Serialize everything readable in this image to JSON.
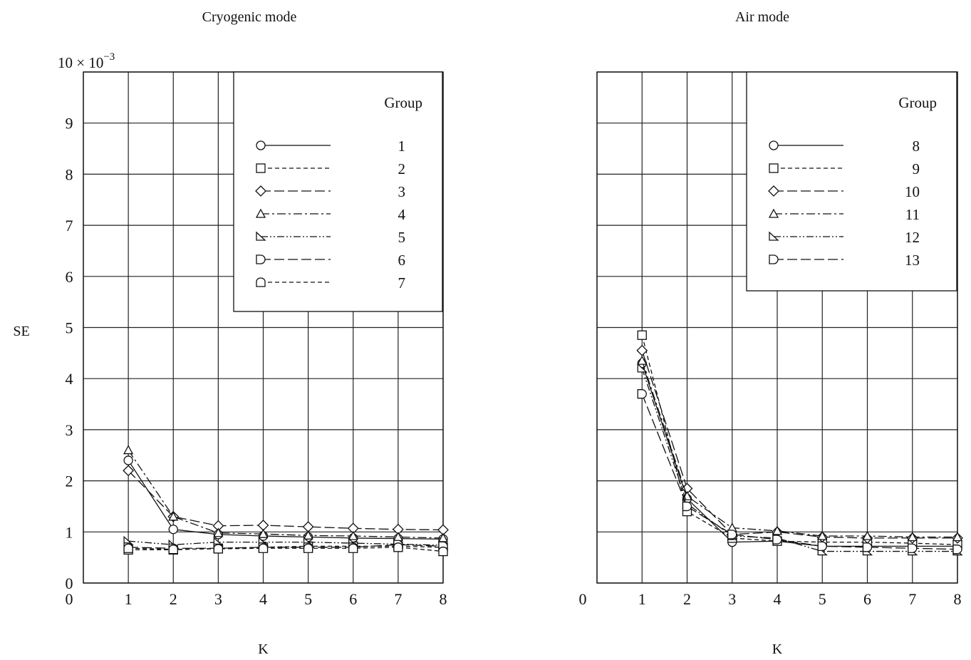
{
  "figure": {
    "shared_ylabel": "SE",
    "y_exponent_base": "10 × 10",
    "y_exponent_power": "−3"
  },
  "chart_data": [
    {
      "type": "line",
      "title": "Cryogenic mode",
      "xlabel": "K",
      "ylabel": "SE",
      "x": [
        1,
        2,
        3,
        4,
        5,
        6,
        7,
        8
      ],
      "xlim": [
        0,
        8
      ],
      "ylim": [
        0,
        10
      ],
      "y_scale_note": "× 10^-3",
      "x_ticks": [
        "0",
        "1",
        "2",
        "3",
        "4",
        "5",
        "6",
        "7",
        "8"
      ],
      "y_ticks": [
        "0",
        "1",
        "2",
        "3",
        "4",
        "5",
        "6",
        "7",
        "8",
        "9"
      ],
      "grid": true,
      "legend_title": "Group",
      "legend_position": "top-right",
      "series": [
        {
          "name": "1",
          "marker": "circle",
          "dash": "solid",
          "values": [
            2.4,
            1.05,
            0.95,
            0.92,
            0.9,
            0.88,
            0.87,
            0.86
          ]
        },
        {
          "name": "2",
          "marker": "square",
          "dash": "dashed",
          "values": [
            0.65,
            0.65,
            0.68,
            0.7,
            0.72,
            0.72,
            0.72,
            0.7
          ]
        },
        {
          "name": "3",
          "marker": "diamond",
          "dash": "longdash",
          "values": [
            2.2,
            1.3,
            1.12,
            1.13,
            1.1,
            1.07,
            1.05,
            1.04
          ]
        },
        {
          "name": "4",
          "marker": "triangle",
          "dash": "dashdot",
          "values": [
            2.6,
            1.3,
            0.98,
            0.96,
            0.93,
            0.92,
            0.9,
            0.88
          ]
        },
        {
          "name": "5",
          "marker": "wedge",
          "dash": "dashdotdot",
          "values": [
            0.82,
            0.75,
            0.8,
            0.8,
            0.8,
            0.78,
            0.76,
            0.74
          ]
        },
        {
          "name": "6",
          "marker": "halfcircle",
          "dash": "longdash",
          "values": [
            0.7,
            0.68,
            0.68,
            0.7,
            0.7,
            0.7,
            0.75,
            0.72
          ]
        },
        {
          "name": "7",
          "marker": "roundrect",
          "dash": "dashed",
          "values": [
            0.68,
            0.66,
            0.67,
            0.68,
            0.68,
            0.68,
            0.7,
            0.62
          ]
        }
      ]
    },
    {
      "type": "line",
      "title": "Air mode",
      "xlabel": "K",
      "ylabel": "SE",
      "x": [
        1,
        2,
        3,
        4,
        5,
        6,
        7,
        8
      ],
      "xlim": [
        0,
        8
      ],
      "ylim": [
        0,
        10
      ],
      "y_scale_note": "× 10^-3",
      "x_ticks": [
        "0",
        "1",
        "2",
        "3",
        "4",
        "5",
        "6",
        "7",
        "8"
      ],
      "y_ticks": [],
      "grid": true,
      "legend_title": "Group",
      "legend_position": "top-right",
      "series": [
        {
          "name": "8",
          "marker": "circle",
          "dash": "solid",
          "values": [
            4.3,
            1.65,
            0.8,
            0.82,
            0.72,
            0.72,
            0.72,
            0.72
          ]
        },
        {
          "name": "9",
          "marker": "square",
          "dash": "dashed",
          "values": [
            4.85,
            1.4,
            0.88,
            0.82,
            0.8,
            0.8,
            0.78,
            0.75
          ]
        },
        {
          "name": "10",
          "marker": "diamond",
          "dash": "longdash",
          "values": [
            4.55,
            1.85,
            0.95,
            1.0,
            0.9,
            0.88,
            0.88,
            0.88
          ]
        },
        {
          "name": "11",
          "marker": "triangle",
          "dash": "dashdot",
          "values": [
            4.35,
            1.7,
            1.08,
            1.02,
            0.92,
            0.92,
            0.9,
            0.9
          ]
        },
        {
          "name": "12",
          "marker": "wedge",
          "dash": "dashdotdot",
          "values": [
            4.2,
            1.55,
            0.92,
            0.88,
            0.62,
            0.62,
            0.62,
            0.62
          ]
        },
        {
          "name": "13",
          "marker": "halfcircle",
          "dash": "longdash",
          "values": [
            3.7,
            1.5,
            0.95,
            0.85,
            0.72,
            0.7,
            0.68,
            0.66
          ]
        }
      ]
    }
  ]
}
